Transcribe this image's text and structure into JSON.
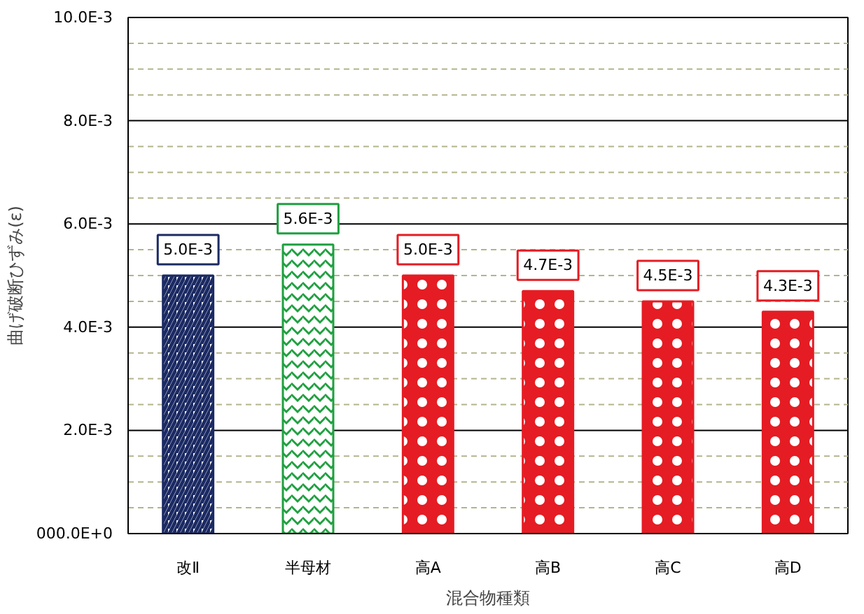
{
  "chart_data": {
    "type": "bar",
    "xlabel": "混合物種類",
    "ylabel": "曲げ破断ひずみ(ε)",
    "categories": [
      "改Ⅱ",
      "半母材",
      "高A",
      "高B",
      "高C",
      "高D"
    ],
    "values": [
      0.005,
      0.0056,
      0.005,
      0.0047,
      0.0045,
      0.0043
    ],
    "colors": [
      "#1b2a63",
      "#1fa040",
      "#e51c23",
      "#e51c23",
      "#e51c23",
      "#e51c23"
    ],
    "value_labels": [
      "5.0E-3",
      "5.6E-3",
      "5.0E-3",
      "4.7E-3",
      "4.5E-3",
      "4.3E-3"
    ],
    "ylim": [
      0,
      0.01
    ],
    "yticks": [
      {
        "value": 0,
        "label": "000.0E+0"
      },
      {
        "value": 0.0005,
        "label": null
      },
      {
        "value": 0.001,
        "label": null
      },
      {
        "value": 0.0015,
        "label": null
      },
      {
        "value": 0.002,
        "label": "2.0E-3"
      },
      {
        "value": 0.0025,
        "label": null
      },
      {
        "value": 0.003,
        "label": null
      },
      {
        "value": 0.0035,
        "label": null
      },
      {
        "value": 0.004,
        "label": "4.0E-3"
      },
      {
        "value": 0.0045,
        "label": null
      },
      {
        "value": 0.005,
        "label": null
      },
      {
        "value": 0.0055,
        "label": null
      },
      {
        "value": 0.006,
        "label": "6.0E-3"
      },
      {
        "value": 0.0065,
        "label": null
      },
      {
        "value": 0.007,
        "label": null
      },
      {
        "value": 0.0075,
        "label": null
      },
      {
        "value": 0.008,
        "label": "8.0E-3"
      },
      {
        "value": 0.0085,
        "label": null
      },
      {
        "value": 0.009,
        "label": null
      },
      {
        "value": 0.0095,
        "label": null
      },
      {
        "value": 0.01,
        "label": "10.0E-3"
      }
    ],
    "grid": "y"
  }
}
